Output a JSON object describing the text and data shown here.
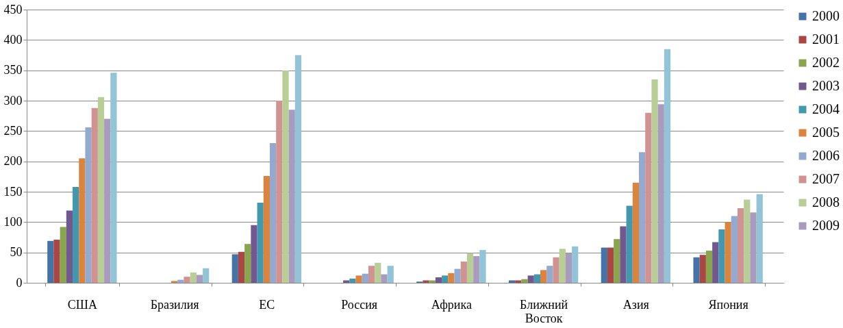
{
  "chart_data": {
    "type": "bar",
    "categories": [
      "США",
      "Бразилия",
      "ЕС",
      "Россия",
      "Африка",
      "Ближний Восток",
      "Азия",
      "Япония"
    ],
    "series": [
      {
        "name": "2000",
        "color": "#4572a7",
        "values": [
          69,
          0,
          47,
          0,
          2,
          4,
          58,
          42
        ]
      },
      {
        "name": "2001",
        "color": "#aa4643",
        "values": [
          71,
          0,
          51,
          0,
          4,
          4,
          58,
          46
        ]
      },
      {
        "name": "2002",
        "color": "#89a54e",
        "values": [
          92,
          0,
          64,
          0,
          4,
          6,
          72,
          53
        ]
      },
      {
        "name": "2003",
        "color": "#71588f",
        "values": [
          119,
          0,
          95,
          4,
          9,
          12,
          93,
          67
        ]
      },
      {
        "name": "2004",
        "color": "#4198af",
        "values": [
          158,
          0,
          132,
          7,
          12,
          14,
          127,
          88
        ]
      },
      {
        "name": "2005",
        "color": "#db843d",
        "values": [
          205,
          3,
          176,
          12,
          16,
          21,
          165,
          100
        ]
      },
      {
        "name": "2006",
        "color": "#93a9cf",
        "values": [
          256,
          5,
          230,
          15,
          23,
          28,
          215,
          110
        ]
      },
      {
        "name": "2007",
        "color": "#d19392",
        "values": [
          288,
          10,
          300,
          28,
          35,
          42,
          280,
          123
        ]
      },
      {
        "name": "2008",
        "color": "#b9cd96",
        "values": [
          306,
          17,
          350,
          33,
          49,
          56,
          335,
          137
        ]
      },
      {
        "name": "2009",
        "color": "#a99bbd",
        "values": [
          270,
          13,
          285,
          14,
          44,
          49,
          294,
          116
        ]
      },
      {
        "color": "#92c3d6",
        "values": [
          346,
          24,
          375,
          28,
          54,
          60,
          385,
          146
        ]
      }
    ],
    "ylim": [
      0,
      450
    ],
    "yticks": [
      0,
      50,
      100,
      150,
      200,
      250,
      300,
      350,
      400,
      450
    ],
    "grid": "y",
    "legend": "right"
  }
}
